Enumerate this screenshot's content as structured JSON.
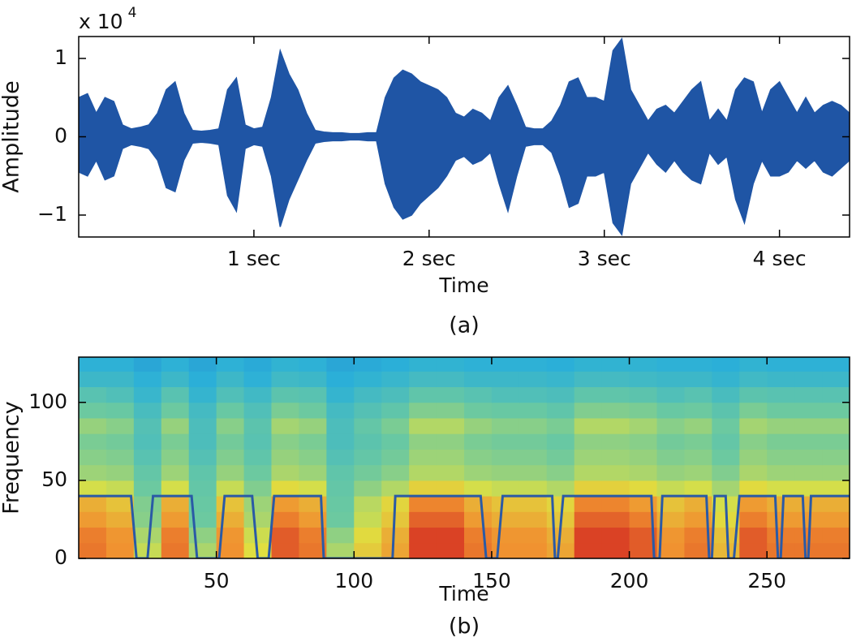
{
  "chart_data": [
    {
      "type": "band",
      "ylabel": "Amplitude",
      "xlabel": "Time",
      "caption": "(a)",
      "multiplier": {
        "base": "x 10",
        "exponent": "4"
      },
      "color": "#1f55a5",
      "xlim": [
        0,
        4.4
      ],
      "ylim": [
        -1.28,
        1.28
      ],
      "xticks": [
        {
          "value": 1,
          "label": "1 sec"
        },
        {
          "value": 2,
          "label": "2 sec"
        },
        {
          "value": 3,
          "label": "3 sec"
        },
        {
          "value": 4,
          "label": "4 sec"
        }
      ],
      "yticks": [
        {
          "value": -1,
          "label": "−1"
        },
        0,
        1
      ],
      "x": [
        0,
        0.05,
        0.1,
        0.15,
        0.2,
        0.25,
        0.3,
        0.35,
        0.4,
        0.45,
        0.5,
        0.55,
        0.6,
        0.65,
        0.7,
        0.75,
        0.8,
        0.85,
        0.9,
        0.95,
        1,
        1.05,
        1.1,
        1.15,
        1.2,
        1.25,
        1.3,
        1.35,
        1.4,
        1.45,
        1.5,
        1.55,
        1.6,
        1.65,
        1.7,
        1.75,
        1.8,
        1.85,
        1.9,
        1.95,
        2,
        2.05,
        2.1,
        2.15,
        2.2,
        2.25,
        2.3,
        2.35,
        2.4,
        2.45,
        2.5,
        2.55,
        2.6,
        2.65,
        2.7,
        2.75,
        2.8,
        2.85,
        2.9,
        2.95,
        3,
        3.05,
        3.1,
        3.15,
        3.2,
        3.25,
        3.3,
        3.35,
        3.4,
        3.45,
        3.5,
        3.55,
        3.6,
        3.65,
        3.7,
        3.75,
        3.8,
        3.85,
        3.9,
        3.95,
        4,
        4.05,
        4.1,
        4.15,
        4.2,
        4.25,
        4.3,
        4.35,
        4.4
      ],
      "upper": [
        0.5,
        0.55,
        0.3,
        0.5,
        0.45,
        0.15,
        0.1,
        0.12,
        0.15,
        0.3,
        0.6,
        0.7,
        0.3,
        0.08,
        0.07,
        0.08,
        0.1,
        0.6,
        0.75,
        0.15,
        0.1,
        0.12,
        0.5,
        1.1,
        0.8,
        0.6,
        0.3,
        0.08,
        0.06,
        0.05,
        0.05,
        0.04,
        0.04,
        0.05,
        0.05,
        0.5,
        0.75,
        0.85,
        0.8,
        0.7,
        0.65,
        0.6,
        0.5,
        0.3,
        0.25,
        0.35,
        0.3,
        0.2,
        0.5,
        0.65,
        0.4,
        0.12,
        0.1,
        0.1,
        0.2,
        0.4,
        0.7,
        0.75,
        0.5,
        0.5,
        0.45,
        1.1,
        1.25,
        0.6,
        0.4,
        0.2,
        0.35,
        0.4,
        0.3,
        0.45,
        0.6,
        0.7,
        0.2,
        0.35,
        0.2,
        0.6,
        0.75,
        0.7,
        0.3,
        0.6,
        0.7,
        0.5,
        0.3,
        0.5,
        0.3,
        0.4,
        0.45,
        0.4,
        0.3
      ],
      "lower": [
        -0.45,
        -0.5,
        -0.3,
        -0.55,
        -0.5,
        -0.15,
        -0.1,
        -0.12,
        -0.15,
        -0.3,
        -0.65,
        -0.7,
        -0.3,
        -0.08,
        -0.07,
        -0.08,
        -0.1,
        -0.75,
        -0.95,
        -0.15,
        -0.1,
        -0.12,
        -0.5,
        -1.15,
        -0.8,
        -0.55,
        -0.3,
        -0.08,
        -0.06,
        -0.05,
        -0.05,
        -0.04,
        -0.04,
        -0.05,
        -0.05,
        -0.6,
        -0.9,
        -1.05,
        -1.0,
        -0.85,
        -0.75,
        -0.65,
        -0.5,
        -0.3,
        -0.25,
        -0.35,
        -0.3,
        -0.2,
        -0.6,
        -0.95,
        -0.5,
        -0.12,
        -0.1,
        -0.1,
        -0.2,
        -0.5,
        -0.9,
        -0.85,
        -0.5,
        -0.5,
        -0.45,
        -1.1,
        -1.25,
        -0.6,
        -0.4,
        -0.2,
        -0.35,
        -0.45,
        -0.3,
        -0.45,
        -0.55,
        -0.6,
        -0.2,
        -0.35,
        -0.25,
        -0.8,
        -1.1,
        -0.6,
        -0.3,
        -0.5,
        -0.5,
        -0.45,
        -0.3,
        -0.4,
        -0.3,
        -0.45,
        -0.5,
        -0.4,
        -0.3
      ]
    },
    {
      "type": "heatmap",
      "ylabel": "Frequency",
      "xlabel": "Time",
      "caption": "(b)",
      "xlim": [
        0,
        280
      ],
      "ylim": [
        0,
        129
      ],
      "xticks": [
        50,
        100,
        150,
        200,
        250
      ],
      "yticks": [
        0,
        50,
        100
      ],
      "colormap": [
        "#1a2fa0",
        "#2166c8",
        "#2bb0d8",
        "#6cc9a0",
        "#e0e040",
        "#f09030",
        "#d02020"
      ],
      "clim": [
        0,
        1
      ],
      "xbins": [
        0,
        10,
        20,
        30,
        40,
        50,
        60,
        70,
        80,
        90,
        100,
        110,
        120,
        130,
        140,
        150,
        160,
        170,
        180,
        190,
        200,
        210,
        220,
        230,
        240,
        250,
        260,
        270,
        280
      ],
      "ybins": [
        0,
        10,
        20,
        30,
        40,
        50,
        60,
        70,
        80,
        90,
        100,
        110,
        120,
        129
      ],
      "z": [
        [
          0.87,
          0.83,
          0.63,
          0.87,
          0.59,
          0.83,
          0.67,
          0.91,
          0.87,
          0.59,
          0.71,
          0.79,
          0.95,
          0.95,
          0.87,
          0.83,
          0.83,
          0.79,
          0.95,
          0.95,
          0.91,
          0.83,
          0.87,
          0.75,
          0.91,
          0.87,
          0.87,
          0.87
        ],
        [
          0.86,
          0.82,
          0.59,
          0.86,
          0.55,
          0.82,
          0.64,
          0.91,
          0.86,
          0.55,
          0.68,
          0.77,
          0.95,
          0.95,
          0.86,
          0.82,
          0.82,
          0.77,
          0.95,
          0.95,
          0.91,
          0.82,
          0.86,
          0.73,
          0.91,
          0.86,
          0.86,
          0.86
        ],
        [
          0.81,
          0.77,
          0.54,
          0.81,
          0.5,
          0.77,
          0.59,
          0.86,
          0.81,
          0.5,
          0.63,
          0.72,
          0.9,
          0.9,
          0.81,
          0.77,
          0.77,
          0.72,
          0.9,
          0.9,
          0.86,
          0.77,
          0.81,
          0.68,
          0.86,
          0.81,
          0.81,
          0.81
        ],
        [
          0.77,
          0.73,
          0.53,
          0.77,
          0.49,
          0.73,
          0.57,
          0.81,
          0.77,
          0.49,
          0.61,
          0.69,
          0.85,
          0.85,
          0.77,
          0.73,
          0.73,
          0.69,
          0.85,
          0.85,
          0.81,
          0.73,
          0.77,
          0.65,
          0.81,
          0.77,
          0.77,
          0.77
        ],
        [
          0.65,
          0.63,
          0.5,
          0.65,
          0.48,
          0.63,
          0.53,
          0.68,
          0.65,
          0.48,
          0.55,
          0.6,
          0.7,
          0.7,
          0.65,
          0.63,
          0.63,
          0.6,
          0.7,
          0.7,
          0.68,
          0.63,
          0.65,
          0.58,
          0.68,
          0.65,
          0.65,
          0.65
        ],
        [
          0.57,
          0.56,
          0.48,
          0.57,
          0.47,
          0.56,
          0.5,
          0.59,
          0.57,
          0.47,
          0.51,
          0.54,
          0.6,
          0.6,
          0.57,
          0.56,
          0.56,
          0.54,
          0.6,
          0.6,
          0.59,
          0.56,
          0.57,
          0.53,
          0.59,
          0.57,
          0.57,
          0.57
        ],
        [
          0.54,
          0.53,
          0.45,
          0.54,
          0.44,
          0.53,
          0.47,
          0.56,
          0.54,
          0.44,
          0.48,
          0.51,
          0.57,
          0.57,
          0.54,
          0.53,
          0.53,
          0.51,
          0.57,
          0.57,
          0.56,
          0.53,
          0.54,
          0.5,
          0.56,
          0.54,
          0.54,
          0.54
        ],
        [
          0.52,
          0.51,
          0.43,
          0.52,
          0.42,
          0.51,
          0.45,
          0.54,
          0.52,
          0.42,
          0.46,
          0.49,
          0.55,
          0.55,
          0.52,
          0.51,
          0.51,
          0.49,
          0.55,
          0.55,
          0.54,
          0.51,
          0.52,
          0.48,
          0.54,
          0.52,
          0.52,
          0.52
        ],
        [
          0.56,
          0.54,
          0.44,
          0.56,
          0.42,
          0.54,
          0.46,
          0.58,
          0.56,
          0.42,
          0.48,
          0.52,
          0.6,
          0.6,
          0.56,
          0.54,
          0.54,
          0.52,
          0.6,
          0.6,
          0.58,
          0.54,
          0.56,
          0.5,
          0.58,
          0.56,
          0.56,
          0.56
        ],
        [
          0.5,
          0.49,
          0.41,
          0.5,
          0.4,
          0.49,
          0.43,
          0.52,
          0.5,
          0.4,
          0.44,
          0.47,
          0.53,
          0.53,
          0.5,
          0.49,
          0.49,
          0.47,
          0.53,
          0.53,
          0.52,
          0.49,
          0.5,
          0.46,
          0.52,
          0.5,
          0.5,
          0.5
        ],
        [
          0.45,
          0.43,
          0.37,
          0.45,
          0.36,
          0.43,
          0.39,
          0.46,
          0.45,
          0.36,
          0.4,
          0.42,
          0.47,
          0.47,
          0.45,
          0.43,
          0.43,
          0.42,
          0.47,
          0.47,
          0.46,
          0.43,
          0.45,
          0.41,
          0.46,
          0.45,
          0.45,
          0.45
        ],
        [
          0.38,
          0.38,
          0.34,
          0.38,
          0.33,
          0.38,
          0.34,
          0.39,
          0.38,
          0.33,
          0.35,
          0.37,
          0.4,
          0.4,
          0.38,
          0.38,
          0.38,
          0.37,
          0.4,
          0.4,
          0.39,
          0.38,
          0.38,
          0.36,
          0.39,
          0.38,
          0.38,
          0.38
        ],
        [
          0.34,
          0.34,
          0.31,
          0.34,
          0.31,
          0.34,
          0.32,
          0.35,
          0.34,
          0.31,
          0.32,
          0.33,
          0.35,
          0.35,
          0.34,
          0.34,
          0.34,
          0.33,
          0.35,
          0.35,
          0.35,
          0.34,
          0.34,
          0.33,
          0.35,
          0.34,
          0.34,
          0.34
        ]
      ],
      "overlay": {
        "color": "#2a5aa6",
        "x": [
          0,
          19,
          21,
          25,
          27,
          41,
          43,
          51,
          53,
          63,
          65,
          69,
          71,
          88,
          89,
          114,
          115,
          146,
          148,
          152,
          154,
          172,
          173,
          174,
          176,
          208,
          209,
          211,
          212,
          228,
          229,
          230,
          231,
          235,
          236,
          238,
          240,
          253,
          254,
          255,
          256,
          263,
          264,
          265,
          266,
          280
        ],
        "values": [
          40,
          40,
          0,
          0,
          40,
          40,
          0,
          0,
          40,
          40,
          0,
          0,
          40,
          40,
          0,
          0,
          40,
          40,
          0,
          0,
          40,
          40,
          0,
          0,
          40,
          40,
          0,
          0,
          40,
          40,
          0,
          0,
          40,
          40,
          0,
          0,
          40,
          40,
          0,
          0,
          40,
          40,
          0,
          0,
          40,
          40
        ]
      }
    }
  ]
}
